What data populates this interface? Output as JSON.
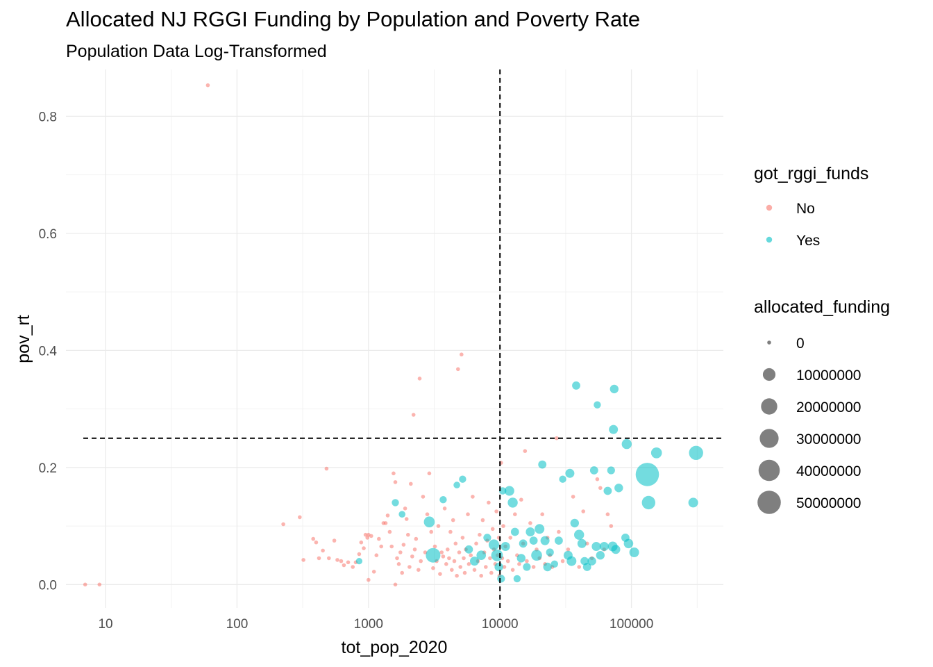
{
  "chart_data": {
    "type": "scatter",
    "title": "Allocated NJ RGGI Funding by Population and Poverty Rate",
    "subtitle": "Population Data Log-Transformed",
    "xlabel": "tot_pop_2020",
    "ylabel": "pov_rt",
    "x_scale": "log10",
    "xlim": [
      5,
      500000
    ],
    "ylim": [
      -0.04,
      0.88
    ],
    "x_ticks": [
      10,
      100,
      1000,
      10000,
      100000
    ],
    "x_tick_labels": [
      "10",
      "100",
      "1000",
      "10000",
      "100000"
    ],
    "y_ticks": [
      0.0,
      0.2,
      0.4,
      0.6,
      0.8
    ],
    "y_tick_labels": [
      "0.0",
      "0.2",
      "0.4",
      "0.6",
      "0.8"
    ],
    "grid": true,
    "reference_lines": {
      "x": 10000,
      "y": 0.25,
      "style": "dashed"
    },
    "legend_placement": "right",
    "color_legend": {
      "title": "got_rggi_funds",
      "entries": [
        {
          "label": "No",
          "color": "#F8766D"
        },
        {
          "label": "Yes",
          "color": "#00BFC4"
        }
      ]
    },
    "size_legend": {
      "title": "allocated_funding",
      "entries": [
        {
          "label": "0",
          "value": 0
        },
        {
          "label": "10000000",
          "value": 10000000
        },
        {
          "label": "20000000",
          "value": 20000000
        },
        {
          "label": "30000000",
          "value": 30000000
        },
        {
          "label": "40000000",
          "value": 40000000
        },
        {
          "label": "50000000",
          "value": 50000000
        }
      ]
    },
    "series": [
      {
        "name": "No",
        "color": "#F8766D",
        "points": [
          [
            7,
            0.0,
            0
          ],
          [
            9,
            0.0,
            0
          ],
          [
            60,
            0.853,
            0
          ],
          [
            225,
            0.103,
            0
          ],
          [
            300,
            0.115,
            0
          ],
          [
            320,
            0.042,
            0
          ],
          [
            380,
            0.078,
            0
          ],
          [
            400,
            0.072,
            0
          ],
          [
            480,
            0.198,
            0
          ],
          [
            450,
            0.058,
            0
          ],
          [
            420,
            0.045,
            0
          ],
          [
            500,
            0.045,
            0
          ],
          [
            550,
            0.075,
            0
          ],
          [
            580,
            0.042,
            0
          ],
          [
            620,
            0.04,
            0
          ],
          [
            650,
            0.033,
            0
          ],
          [
            700,
            0.038,
            0
          ],
          [
            760,
            0.03,
            0
          ],
          [
            800,
            0.038,
            0
          ],
          [
            850,
            0.052,
            0
          ],
          [
            880,
            0.072,
            0
          ],
          [
            920,
            0.062,
            0
          ],
          [
            950,
            0.085,
            0
          ],
          [
            980,
            0.08,
            0
          ],
          [
            1000,
            0.085,
            0
          ],
          [
            1050,
            0.083,
            0
          ],
          [
            1100,
            0.022,
            0
          ],
          [
            1000,
            0.008,
            0
          ],
          [
            1150,
            0.05,
            0
          ],
          [
            1200,
            0.078,
            0
          ],
          [
            1250,
            0.065,
            0
          ],
          [
            1300,
            0.105,
            0
          ],
          [
            1350,
            0.105,
            0
          ],
          [
            1400,
            0.118,
            0
          ],
          [
            1450,
            0.09,
            0
          ],
          [
            1500,
            0.065,
            0
          ],
          [
            1550,
            0.19,
            0
          ],
          [
            1600,
            0.175,
            0
          ],
          [
            1600,
            0.0,
            0
          ],
          [
            1650,
            0.045,
            0
          ],
          [
            1700,
            0.035,
            0
          ],
          [
            1750,
            0.055,
            0
          ],
          [
            1800,
            0.02,
            0
          ],
          [
            1850,
            0.068,
            0
          ],
          [
            1900,
            0.13,
            0
          ],
          [
            1950,
            0.112,
            0
          ],
          [
            2000,
            0.085,
            0
          ],
          [
            2050,
            0.03,
            0
          ],
          [
            2100,
            0.172,
            0
          ],
          [
            2150,
            0.048,
            0
          ],
          [
            2200,
            0.29,
            0
          ],
          [
            2250,
            0.06,
            0
          ],
          [
            2300,
            0.078,
            0
          ],
          [
            2400,
            0.025,
            0
          ],
          [
            2450,
            0.352,
            0
          ],
          [
            2500,
            0.04,
            0
          ],
          [
            2600,
            0.15,
            0
          ],
          [
            2700,
            0.055,
            0
          ],
          [
            2800,
            0.12,
            0
          ],
          [
            2900,
            0.19,
            0
          ],
          [
            3000,
            0.09,
            0
          ],
          [
            3100,
            0.028,
            0
          ],
          [
            3200,
            0.065,
            0
          ],
          [
            3300,
            0.04,
            0
          ],
          [
            3400,
            0.1,
            0
          ],
          [
            3500,
            0.018,
            0
          ],
          [
            3600,
            0.055,
            0
          ],
          [
            3700,
            0.048,
            0
          ],
          [
            3800,
            0.13,
            0
          ],
          [
            3900,
            0.035,
            0
          ],
          [
            4000,
            0.06,
            0
          ],
          [
            4100,
            0.045,
            0
          ],
          [
            4200,
            0.09,
            0
          ],
          [
            4300,
            0.025,
            0
          ],
          [
            4400,
            0.11,
            0
          ],
          [
            4500,
            0.04,
            0
          ],
          [
            4600,
            0.07,
            0
          ],
          [
            4700,
            0.015,
            0
          ],
          [
            4800,
            0.368,
            0
          ],
          [
            4900,
            0.055,
            0
          ],
          [
            5000,
            0.03,
            0
          ],
          [
            5100,
            0.393,
            0
          ],
          [
            5200,
            0.08,
            0
          ],
          [
            5300,
            0.045,
            0
          ],
          [
            5400,
            0.02,
            0
          ],
          [
            5500,
            0.06,
            0
          ],
          [
            5700,
            0.12,
            0
          ],
          [
            5800,
            0.035,
            0
          ],
          [
            6000,
            0.05,
            0
          ],
          [
            6200,
            0.15,
            0
          ],
          [
            6400,
            0.025,
            0
          ],
          [
            6600,
            0.07,
            0
          ],
          [
            6800,
            0.04,
            0
          ],
          [
            7000,
            0.085,
            0
          ],
          [
            7200,
            0.015,
            0
          ],
          [
            7400,
            0.11,
            0
          ],
          [
            7600,
            0.055,
            0
          ],
          [
            7800,
            0.03,
            0
          ],
          [
            8000,
            0.075,
            0
          ],
          [
            8200,
            0.14,
            0
          ],
          [
            8400,
            0.045,
            0
          ],
          [
            8600,
            0.02,
            0
          ],
          [
            8800,
            0.095,
            0
          ],
          [
            9000,
            0.06,
            0
          ],
          [
            9200,
            0.035,
            0
          ],
          [
            9400,
            0.125,
            0
          ],
          [
            9600,
            0.05,
            0
          ],
          [
            9800,
            0.08,
            0
          ],
          [
            9900,
            0.015,
            0
          ],
          [
            10200,
            0.208,
            0
          ],
          [
            10400,
            0.045,
            0
          ],
          [
            10600,
            0.1,
            0
          ],
          [
            10800,
            0.03,
            0
          ],
          [
            11000,
            0.065,
            0
          ],
          [
            11500,
            0.04,
            0
          ],
          [
            12000,
            0.08,
            0
          ],
          [
            12500,
            0.025,
            0
          ],
          [
            13000,
            0.12,
            0
          ],
          [
            13500,
            0.05,
            0
          ],
          [
            14000,
            0.035,
            0
          ],
          [
            14500,
            0.145,
            0
          ],
          [
            15000,
            0.07,
            0
          ],
          [
            15500,
            0.228,
            0
          ],
          [
            16000,
            0.04,
            0
          ],
          [
            17000,
            0.105,
            0
          ],
          [
            18000,
            0.03,
            0
          ],
          [
            19000,
            0.06,
            0
          ],
          [
            20000,
            0.045,
            0
          ],
          [
            21000,
            0.12,
            0
          ],
          [
            22000,
            0.035,
            0
          ],
          [
            23000,
            0.08,
            0
          ],
          [
            24000,
            0.05,
            0
          ],
          [
            25000,
            0.03,
            0
          ],
          [
            27000,
            0.25,
            0
          ],
          [
            28000,
            0.09,
            0
          ],
          [
            30000,
            0.04,
            0
          ],
          [
            33000,
            0.06,
            0
          ],
          [
            36000,
            0.15,
            0
          ],
          [
            40000,
            0.03,
            0
          ],
          [
            43000,
            0.125,
            0
          ],
          [
            46000,
            0.07,
            0
          ],
          [
            50000,
            0.045,
            0
          ],
          [
            55000,
            0.18,
            0
          ],
          [
            58000,
            0.165,
            0
          ],
          [
            62000,
            0.06,
            0
          ],
          [
            66000,
            0.12,
            0
          ],
          [
            70000,
            0.1,
            0
          ]
        ]
      },
      {
        "name": "Yes",
        "color": "#00BFC4",
        "points": [
          [
            850,
            0.04,
            800000
          ],
          [
            1600,
            0.14,
            1500000
          ],
          [
            1800,
            0.12,
            1000000
          ],
          [
            2900,
            0.107,
            6500000
          ],
          [
            3100,
            0.05,
            15000000
          ],
          [
            3700,
            0.145,
            1500000
          ],
          [
            4700,
            0.17,
            1000000
          ],
          [
            5200,
            0.18,
            1500000
          ],
          [
            5800,
            0.06,
            2500000
          ],
          [
            6400,
            0.04,
            3500000
          ],
          [
            7200,
            0.05,
            4000000
          ],
          [
            8000,
            0.08,
            2000000
          ],
          [
            9000,
            0.068,
            6000000
          ],
          [
            9500,
            0.05,
            8000000
          ],
          [
            9800,
            0.03,
            3000000
          ],
          [
            10200,
            0.01,
            2000000
          ],
          [
            10500,
            0.16,
            1500000
          ],
          [
            11000,
            0.065,
            3500000
          ],
          [
            11800,
            0.16,
            4500000
          ],
          [
            12500,
            0.14,
            5000000
          ],
          [
            13000,
            0.09,
            2500000
          ],
          [
            13500,
            0.01,
            1500000
          ],
          [
            14500,
            0.045,
            3000000
          ],
          [
            15000,
            0.07,
            2500000
          ],
          [
            16000,
            0.03,
            2000000
          ],
          [
            17000,
            0.09,
            3500000
          ],
          [
            18000,
            0.075,
            2500000
          ],
          [
            19000,
            0.05,
            6500000
          ],
          [
            20000,
            0.095,
            4500000
          ],
          [
            21000,
            0.205,
            2500000
          ],
          [
            22000,
            0.075,
            3500000
          ],
          [
            23000,
            0.03,
            3000000
          ],
          [
            24000,
            0.055,
            2000000
          ],
          [
            26000,
            0.035,
            1500000
          ],
          [
            28000,
            0.075,
            2500000
          ],
          [
            30000,
            0.18,
            1500000
          ],
          [
            33000,
            0.05,
            3500000
          ],
          [
            34000,
            0.19,
            3500000
          ],
          [
            35000,
            0.04,
            4500000
          ],
          [
            37000,
            0.105,
            3000000
          ],
          [
            38000,
            0.34,
            2500000
          ],
          [
            40000,
            0.085,
            5000000
          ],
          [
            42000,
            0.07,
            3500000
          ],
          [
            44000,
            0.04,
            2500000
          ],
          [
            46000,
            0.03,
            2500000
          ],
          [
            50000,
            0.04,
            3000000
          ],
          [
            52000,
            0.195,
            2500000
          ],
          [
            54000,
            0.065,
            3500000
          ],
          [
            55000,
            0.307,
            1500000
          ],
          [
            58000,
            0.05,
            3000000
          ],
          [
            62000,
            0.065,
            3500000
          ],
          [
            66000,
            0.16,
            2500000
          ],
          [
            70000,
            0.195,
            2000000
          ],
          [
            72000,
            0.065,
            4500000
          ],
          [
            73000,
            0.265,
            3500000
          ],
          [
            74000,
            0.334,
            3000000
          ],
          [
            76000,
            0.06,
            3500000
          ],
          [
            80000,
            0.165,
            3000000
          ],
          [
            90000,
            0.08,
            2500000
          ],
          [
            92000,
            0.24,
            5000000
          ],
          [
            95000,
            0.07,
            4000000
          ],
          [
            105000,
            0.055,
            4500000
          ],
          [
            132000,
            0.188,
            50000000
          ],
          [
            135000,
            0.14,
            12000000
          ],
          [
            155000,
            0.225,
            6500000
          ],
          [
            295000,
            0.14,
            4500000
          ],
          [
            310000,
            0.225,
            14000000
          ]
        ]
      }
    ]
  }
}
